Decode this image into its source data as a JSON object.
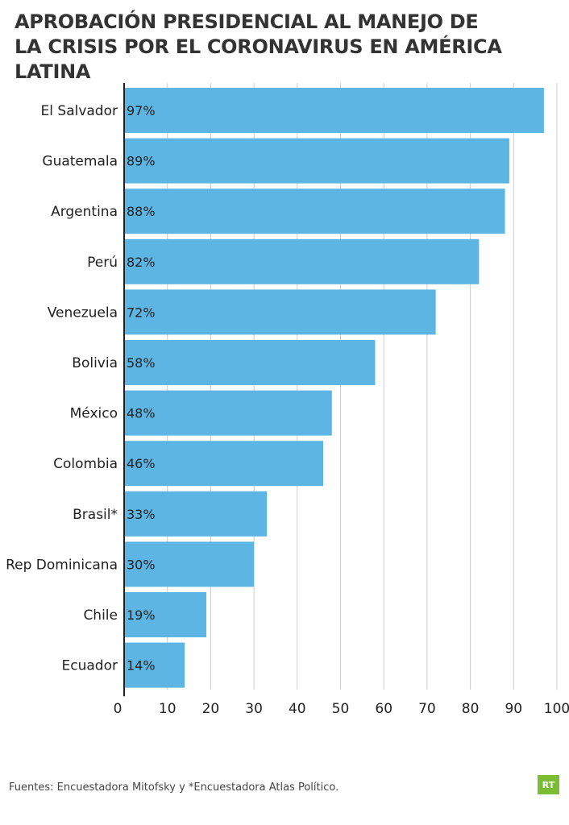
{
  "header": {
    "title_line1": "APROBACIÓN PRESIDENCIAL AL MANEJO DE",
    "title_line2": "LA CRISIS POR EL CORONAVIRUS EN AMÉRICA LATINA"
  },
  "footer": {
    "source": "Fuentes: Encuestadora Mitofsky y *Encuestadora Atlas Político.",
    "logo_text": "RT"
  },
  "colors": {
    "bar": "#5db5e3",
    "grid": "#cccccc",
    "axis": "#222222",
    "logo": "#7bbc35"
  },
  "chart_data": {
    "type": "bar",
    "orientation": "horizontal",
    "title": "APROBACIÓN PRESIDENCIAL AL MANEJO DE LA CRISIS POR EL CORONAVIRUS EN AMÉRICA LATINA",
    "xlabel": "",
    "ylabel": "",
    "categories": [
      "El Salvador",
      "Guatemala",
      "Argentina",
      "Perú",
      "Venezuela",
      "Bolivia",
      "México",
      "Colombia",
      "Brasil*",
      "Rep Dominicana",
      "Chile",
      "Ecuador"
    ],
    "values": [
      97,
      89,
      88,
      82,
      72,
      58,
      48,
      46,
      33,
      30,
      19,
      14
    ],
    "data_labels": [
      "97%",
      "89%",
      "88%",
      "82%",
      "72%",
      "58%",
      "48%",
      "46%",
      "33%",
      "30%",
      "19%",
      "14%"
    ],
    "xlim": [
      0,
      100
    ],
    "xticks": [
      0,
      10,
      20,
      30,
      40,
      50,
      60,
      70,
      80,
      90,
      100
    ],
    "grid": "vertical",
    "legend": "none"
  }
}
